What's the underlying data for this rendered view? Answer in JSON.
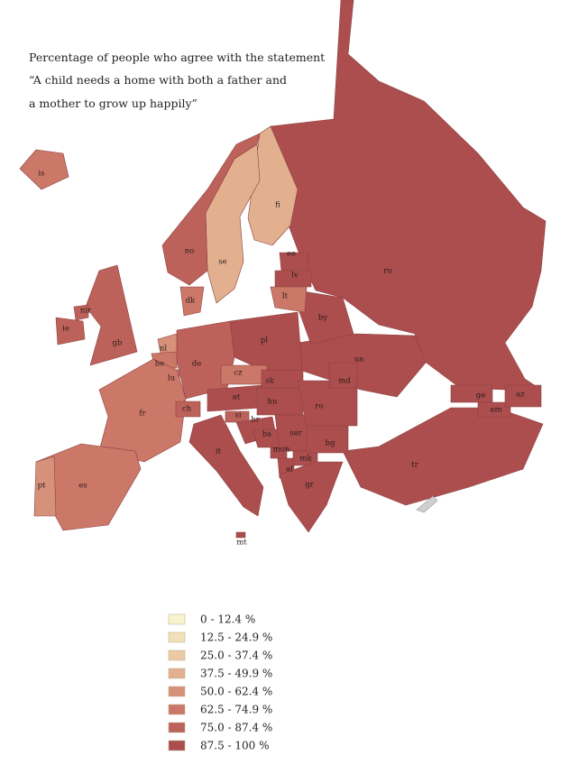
{
  "title_lines": [
    "Percentage of people who agree with the statement",
    "“A child needs a home with both a father and",
    "a mother to grow up happily”"
  ],
  "legend": [
    {
      "label": "0 - 12.4 %",
      "color": "#f7f3cf"
    },
    {
      "label": "12.5 - 24.9 %",
      "color": "#f1e0b8"
    },
    {
      "label": "25.0 - 37.4 %",
      "color": "#ebcaa3"
    },
    {
      "label": "37.5 - 49.9 %",
      "color": "#e2b08f"
    },
    {
      "label": "50.0 - 62.4 %",
      "color": "#d6917b"
    },
    {
      "label": "62.5 - 74.9 %",
      "color": "#cb7868"
    },
    {
      "label": "75.0 - 87.4 %",
      "color": "#bd625a"
    },
    {
      "label": "87.5 - 100 %",
      "color": "#ac4e4e"
    }
  ],
  "countries": [
    {
      "label": "ru",
      "color": "#ac4e4e"
    },
    {
      "label": "tr",
      "color": "#ac4e4e"
    },
    {
      "label": "ua",
      "color": "#ac4e4e"
    },
    {
      "label": "by",
      "color": "#ac4e4e"
    },
    {
      "label": "fi",
      "color": "#e2b08f"
    },
    {
      "label": "se",
      "color": "#e2b08f"
    },
    {
      "label": "no",
      "color": "#bd625a"
    },
    {
      "label": "is",
      "color": "#cb7868"
    },
    {
      "label": "gb",
      "color": "#bd625a"
    },
    {
      "label": "ie",
      "color": "#bd625a"
    },
    {
      "label": "nir",
      "color": "#bd625a"
    },
    {
      "label": "dk",
      "color": "#cb7868"
    },
    {
      "label": "ee",
      "color": "#ac4e4e"
    },
    {
      "label": "lv",
      "color": "#ac4e4e"
    },
    {
      "label": "lt",
      "color": "#cb7868"
    },
    {
      "label": "pl",
      "color": "#ac4e4e"
    },
    {
      "label": "de",
      "color": "#bd625a"
    },
    {
      "label": "nl",
      "color": "#d6917b"
    },
    {
      "label": "be",
      "color": "#cb7868"
    },
    {
      "label": "lu",
      "color": "#cb7868"
    },
    {
      "label": "fr",
      "color": "#cb7868"
    },
    {
      "label": "es",
      "color": "#cb7868"
    },
    {
      "label": "pt",
      "color": "#d6917b"
    },
    {
      "label": "ch",
      "color": "#bd625a"
    },
    {
      "label": "it",
      "color": "#ac4e4e"
    },
    {
      "label": "mt",
      "color": "#ac4e4e"
    },
    {
      "label": "at",
      "color": "#ac4e4e"
    },
    {
      "label": "cz",
      "color": "#cb7868"
    },
    {
      "label": "sk",
      "color": "#ac4e4e"
    },
    {
      "label": "hu",
      "color": "#ac4e4e"
    },
    {
      "label": "si",
      "color": "#bd625a"
    },
    {
      "label": "hr",
      "color": "#ac4e4e"
    },
    {
      "label": "ba",
      "color": "#ac4e4e"
    },
    {
      "label": "ser",
      "color": "#ac4e4e"
    },
    {
      "label": "mon",
      "color": "#ac4e4e"
    },
    {
      "label": "al",
      "color": "#ac4e4e"
    },
    {
      "label": "mk",
      "color": "#ac4e4e"
    },
    {
      "label": "ro",
      "color": "#ac4e4e"
    },
    {
      "label": "md",
      "color": "#ac4e4e"
    },
    {
      "label": "bg",
      "color": "#ac4e4e"
    },
    {
      "label": "gr",
      "color": "#ac4e4e"
    },
    {
      "label": "ge",
      "color": "#ac4e4e"
    },
    {
      "label": "am",
      "color": "#ac4e4e"
    },
    {
      "label": "az",
      "color": "#ac4e4e"
    }
  ]
}
